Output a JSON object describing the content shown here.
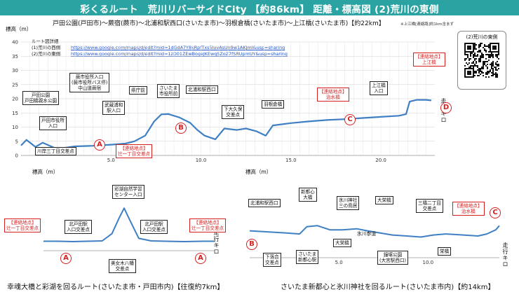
{
  "header": {
    "title": "彩くるルート　荒川リバーサイドCity 【約86km】 距離・標高図 (2)荒川の東側",
    "bg_color": "#2ba3a3"
  },
  "route_line": "戸田公園(戸田市)～蕨宿(蕨市)～北浦和駅西口(さいたま市)～羽根倉橋(さいたま市)～上江橋(さいたま市)【約22km】",
  "route_note": "※上江橋[連絡路]約1km含まず",
  "maps": {
    "title": "ルート図詳細",
    "west_label": "(1)荒川の西側",
    "west_url": "https://www.google.com/maps/d/edit?mid=1dGdA7Y8kRpfTxs5IuvAsUn9w1AKJmI&usp=sharing",
    "east_label": "(2)荒川の東側",
    "east_url": "https://www.google.com/maps/d/edit?mid=1zD01ZEwBogeJKEwqSZoZ7fSRUpmUY&usp=sharing"
  },
  "qr": {
    "title": "(2)荒川の東側"
  },
  "colors": {
    "line": "#3f7fc4",
    "accent": "#d62020",
    "grid": "#d0d0d0"
  },
  "captions": {
    "bottom_left": "幸魂大橋と彩湖を回るルート(さいたま市・戸田市内)【往復約7km】",
    "bottom_right": "さいたま新都心と氷川神社を回るルート(さいたま市内)【約14km】"
  },
  "markers": {
    "A": "Ⓐ",
    "B": "Ⓑ",
    "C": "Ⓒ",
    "D": "Ⓓ"
  },
  "callouts": {
    "main": {
      "toda_park": "戸田公園\n戸田橋親水公園",
      "toda_city_hall": "戸田市役所\n入口",
      "kawagishi": "川岸三丁目交差点",
      "warabi_city_hall": "蕨市役所入口\n(蕨市役所バス停)\n中山道蕨宿",
      "musashi_urawa": "武蔵浦和\n駅入口",
      "kenchomae": "県庁前",
      "saitama_city_hall": "さいたま\n市役所前",
      "kitaurawa": "北浦和駅西口",
      "shimo_okubo": "下大久保\n交差点",
      "haneku": "羽根倉橋",
      "kamigou": "上江橋\n入口",
      "tsujiicho": "【連絡地点】\n辻一丁目交差点",
      "jisuibashi": "【連絡地点】\n治水橋",
      "kamigou_bridge": "【連絡地点】\n上江橋"
    },
    "left": {
      "tsujiicho": "【連絡地点】\n辻一丁目交差点",
      "tsujiicho_right": "【連絡地点】\n辻一丁目交差点",
      "kitatoda1": "北戸田駅\n入口交差点",
      "kitatoda2": "北戸田駅\n入口交差点",
      "nature_center": "彩湖自然学習\nセンター入口",
      "bijogi": "美女木八幡\n交差点"
    },
    "right": {
      "kitaurawa": "北浦和駅西口",
      "shintoshin": "新都心\n大橋",
      "hikawa": "氷川神社\n三の鳥居",
      "oosakae": "大栄橋",
      "sanban": "三橋二丁目\n交差点",
      "jisuibashi": "【連絡地点】\n治水橋",
      "shimoochiai": "下落合\n交差点",
      "saitama_shintoshin": "さいたま\n新都心駅",
      "oomiya_bridge": "大栄橋",
      "kyoudo": "鐘塚公園\n(大宮駅西口)",
      "sakae": "栄橋",
      "hikawa_sando": "氷川参道"
    }
  },
  "axis": {
    "y_label": "標高（m）",
    "x_label": "走行キロ"
  },
  "chart_data": [
    {
      "type": "line",
      "title": "",
      "ylabel": "標高（m）",
      "xlabel": "走行キロ",
      "xlim": [
        0,
        23
      ],
      "ylim": [
        0,
        40
      ],
      "x_ticks": [
        "5.0",
        "10.0",
        "15.0",
        "20.0"
      ],
      "y_ticks": [
        "0",
        "5",
        "10",
        "15",
        "20",
        "25",
        "30",
        "35",
        "40"
      ],
      "grid": true,
      "series": [
        {
          "x": [
            0,
            0.3,
            0.8,
            1.2,
            2.0,
            3.0,
            4.0,
            5.0,
            5.8,
            6.3,
            6.9,
            7.4,
            7.8,
            8.2,
            8.8,
            9.4,
            9.8,
            10.2,
            10.8,
            11.3,
            12.0,
            12.5,
            13.1,
            13.6,
            14.0,
            15.0,
            16.0,
            17.0,
            18.0,
            19.0,
            20.0,
            21.0,
            21.4,
            21.6,
            22.0,
            22.5,
            22.8
          ],
          "y": [
            3.5,
            5.5,
            3.0,
            4.5,
            2.3,
            3.2,
            3.4,
            3.8,
            4.2,
            5.0,
            7.0,
            12.0,
            14.5,
            14.6,
            13.4,
            11.5,
            9.0,
            7.0,
            5.7,
            9.5,
            9.0,
            9.5,
            8.5,
            7.0,
            10.6,
            11.4,
            12.0,
            12.5,
            12.8,
            13.2,
            13.6,
            14.0,
            14.6,
            19.0,
            19.6,
            19.6,
            19.4
          ]
        }
      ]
    },
    {
      "type": "line",
      "title": "",
      "ylabel": "標高（m）",
      "xlabel": "走行キロ",
      "xlim": [
        0,
        7
      ],
      "ylim": [
        0,
        40
      ],
      "grid": false,
      "series": [
        {
          "x": [
            0,
            0.6,
            1.2,
            1.8,
            2.4,
            2.8,
            3.1,
            3.3,
            3.5,
            3.9,
            4.4,
            5.0,
            5.8,
            6.5,
            7.0
          ],
          "y": [
            5.0,
            5.0,
            4.8,
            5.0,
            5.2,
            9.0,
            17.5,
            22.5,
            17.0,
            6.5,
            5.2,
            5.0,
            4.8,
            5.0,
            5.0
          ]
        }
      ]
    },
    {
      "type": "line",
      "title": "",
      "ylabel": "標高（m）",
      "xlabel": "走行キロ",
      "xlim": [
        0,
        14
      ],
      "ylim": [
        0,
        40
      ],
      "x_ticks": [
        "5.0",
        "10.0"
      ],
      "grid": false,
      "series": [
        {
          "x": [
            0,
            1.0,
            2.0,
            2.8,
            3.2,
            3.8,
            4.5,
            5.2,
            6.0,
            6.6,
            7.3,
            8.0,
            8.8,
            9.6,
            10.3,
            11.0,
            12.0,
            12.8,
            13.3,
            13.8,
            14.0
          ],
          "y": [
            13.0,
            12.5,
            12.0,
            11.5,
            15.0,
            15.5,
            13.5,
            13.5,
            14.0,
            13.0,
            12.0,
            11.0,
            10.5,
            10.0,
            11.0,
            11.5,
            11.0,
            10.5,
            11.5,
            13.5,
            15.5
          ]
        }
      ]
    }
  ]
}
